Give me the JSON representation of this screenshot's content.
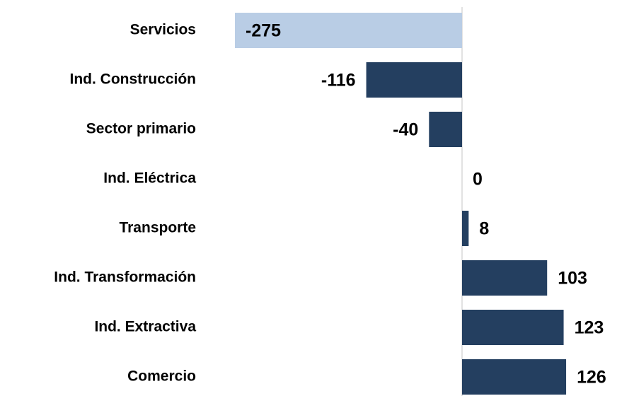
{
  "chart_data": {
    "type": "bar",
    "orientation": "horizontal",
    "categories": [
      "Servicios",
      "Ind. Construcción",
      "Sector primario",
      "Ind. Eléctrica",
      "Transporte",
      "Ind. Transformación",
      "Ind. Extractiva",
      "Comercio"
    ],
    "values": [
      -275,
      -116,
      -40,
      0,
      8,
      103,
      123,
      126
    ],
    "colors": [
      "#b9cde5",
      "#243f60",
      "#243f60",
      "#243f60",
      "#243f60",
      "#243f60",
      "#243f60",
      "#243f60"
    ]
  }
}
